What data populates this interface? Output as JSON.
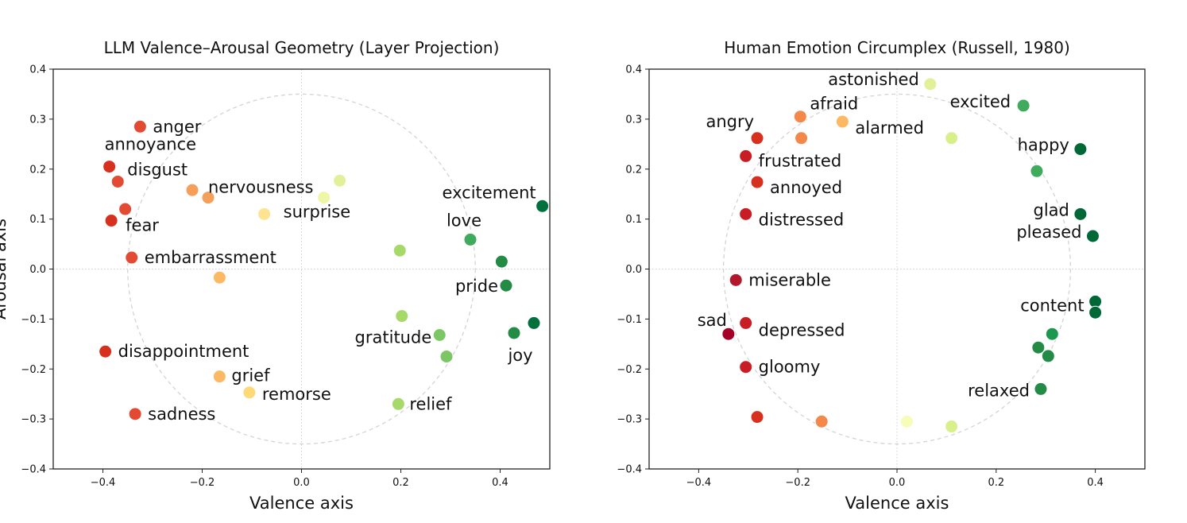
{
  "chart_data": [
    {
      "type": "scatter",
      "title": "LLM Valence–Arousal Geometry (Layer Projection)",
      "xlabel": "Valence axis",
      "ylabel": "Arousal axis",
      "xlim": [
        -0.5,
        0.5
      ],
      "ylim": [
        -0.4,
        0.4
      ],
      "xticks": [
        -0.4,
        -0.2,
        0.0,
        0.2,
        0.4
      ],
      "xtick_labels": [
        "−0.4",
        "−0.2",
        "0.0",
        "0.2",
        "0.4"
      ],
      "yticks": [
        -0.4,
        -0.3,
        -0.2,
        -0.1,
        0.0,
        0.1,
        0.2,
        0.3,
        0.4
      ],
      "ytick_labels": [
        "−0.4",
        "−0.3",
        "−0.2",
        "−0.1",
        "0.0",
        "0.1",
        "0.2",
        "0.3",
        "0.4"
      ],
      "grid": false,
      "reference_circle_radius": 0.35,
      "points": [
        {
          "x": -0.325,
          "y": 0.285,
          "color": "#e34a33",
          "label": "anger"
        },
        {
          "x": -0.387,
          "y": 0.205,
          "color": "#d7301f",
          "label": "annoyance"
        },
        {
          "x": -0.37,
          "y": 0.175,
          "color": "#e34a33",
          "label": "disgust"
        },
        {
          "x": -0.355,
          "y": 0.12,
          "color": "#e34a33",
          "label": ""
        },
        {
          "x": -0.383,
          "y": 0.097,
          "color": "#d7301f",
          "label": "fear"
        },
        {
          "x": -0.342,
          "y": 0.023,
          "color": "#e34a33",
          "label": "embarrassment"
        },
        {
          "x": -0.395,
          "y": -0.165,
          "color": "#d7301f",
          "label": "disappointment"
        },
        {
          "x": -0.335,
          "y": -0.29,
          "color": "#e34a33",
          "label": "sadness"
        },
        {
          "x": -0.22,
          "y": 0.158,
          "color": "#f4a05a",
          "label": ""
        },
        {
          "x": -0.188,
          "y": 0.143,
          "color": "#f4a05a",
          "label": "nervousness"
        },
        {
          "x": -0.165,
          "y": -0.017,
          "color": "#fdb863",
          "label": ""
        },
        {
          "x": -0.165,
          "y": -0.215,
          "color": "#fdb863",
          "label": "grief"
        },
        {
          "x": -0.105,
          "y": -0.247,
          "color": "#fed977",
          "label": "remorse"
        },
        {
          "x": -0.075,
          "y": 0.11,
          "color": "#fee391",
          "label": "surprise"
        },
        {
          "x": 0.045,
          "y": 0.143,
          "color": "#eef7a8",
          "label": ""
        },
        {
          "x": 0.077,
          "y": 0.177,
          "color": "#e2f09a",
          "label": ""
        },
        {
          "x": 0.198,
          "y": 0.037,
          "color": "#a6d96a",
          "label": ""
        },
        {
          "x": 0.202,
          "y": -0.094,
          "color": "#a6d96a",
          "label": ""
        },
        {
          "x": 0.195,
          "y": -0.27,
          "color": "#a6d96a",
          "label": "relief"
        },
        {
          "x": 0.278,
          "y": -0.132,
          "color": "#7bc765",
          "label": "gratitude"
        },
        {
          "x": 0.292,
          "y": -0.175,
          "color": "#7bc765",
          "label": ""
        },
        {
          "x": 0.34,
          "y": 0.059,
          "color": "#41ab5d",
          "label": "love"
        },
        {
          "x": 0.403,
          "y": 0.015,
          "color": "#238b45",
          "label": ""
        },
        {
          "x": 0.412,
          "y": -0.033,
          "color": "#238b45",
          "label": "pride"
        },
        {
          "x": 0.428,
          "y": -0.128,
          "color": "#238b45",
          "label": "joy"
        },
        {
          "x": 0.468,
          "y": -0.108,
          "color": "#00703c",
          "label": ""
        },
        {
          "x": 0.485,
          "y": 0.126,
          "color": "#00703c",
          "label": "excitement"
        }
      ]
    },
    {
      "type": "scatter",
      "title": "Human Emotion Circumplex (Russell, 1980)",
      "xlabel": "Valence axis",
      "ylabel": "",
      "xlim": [
        -0.5,
        0.5
      ],
      "ylim": [
        -0.4,
        0.4
      ],
      "xticks": [
        -0.4,
        -0.2,
        0.0,
        0.2,
        0.4
      ],
      "xtick_labels": [
        "−0.4",
        "−0.2",
        "0.0",
        "0.2",
        "0.4"
      ],
      "yticks": [
        -0.4,
        -0.3,
        -0.2,
        -0.1,
        0.0,
        0.1,
        0.2,
        0.3,
        0.4
      ],
      "ytick_labels": [
        "−0.4",
        "−0.3",
        "−0.2",
        "−0.1",
        "0.0",
        "0.1",
        "0.2",
        "0.3",
        "0.4"
      ],
      "grid": false,
      "reference_circle_radius": 0.35,
      "points": [
        {
          "x": 0.067,
          "y": 0.37,
          "color": "#e2f09a",
          "label": "astonished"
        },
        {
          "x": -0.195,
          "y": 0.305,
          "color": "#f4874a",
          "label": "afraid"
        },
        {
          "x": -0.11,
          "y": 0.295,
          "color": "#fdb863",
          "label": "alarmed"
        },
        {
          "x": 0.255,
          "y": 0.327,
          "color": "#41ab5d",
          "label": "excited"
        },
        {
          "x": -0.282,
          "y": 0.262,
          "color": "#d7301f",
          "label": "angry"
        },
        {
          "x": -0.193,
          "y": 0.262,
          "color": "#f4874a",
          "label": ""
        },
        {
          "x": 0.11,
          "y": 0.262,
          "color": "#d9ef8b",
          "label": ""
        },
        {
          "x": -0.305,
          "y": 0.226,
          "color": "#c81d25",
          "label": "frustrated"
        },
        {
          "x": 0.37,
          "y": 0.24,
          "color": "#006837",
          "label": "happy"
        },
        {
          "x": 0.282,
          "y": 0.196,
          "color": "#41ab5d",
          "label": ""
        },
        {
          "x": -0.282,
          "y": 0.174,
          "color": "#d7301f",
          "label": "annoyed"
        },
        {
          "x": -0.305,
          "y": 0.11,
          "color": "#c81d25",
          "label": "distressed"
        },
        {
          "x": 0.37,
          "y": 0.11,
          "color": "#006837",
          "label": "glad"
        },
        {
          "x": 0.395,
          "y": 0.066,
          "color": "#006837",
          "label": "pleased"
        },
        {
          "x": -0.325,
          "y": -0.022,
          "color": "#b2182b",
          "label": "miserable"
        },
        {
          "x": -0.34,
          "y": -0.13,
          "color": "#a50026",
          "label": "sad"
        },
        {
          "x": -0.305,
          "y": -0.108,
          "color": "#c81d25",
          "label": "depressed"
        },
        {
          "x": 0.4,
          "y": -0.065,
          "color": "#006837",
          "label": "content"
        },
        {
          "x": 0.4,
          "y": -0.087,
          "color": "#006837",
          "label": ""
        },
        {
          "x": 0.313,
          "y": -0.13,
          "color": "#1a9850",
          "label": ""
        },
        {
          "x": 0.285,
          "y": -0.157,
          "color": "#238b45",
          "label": ""
        },
        {
          "x": 0.305,
          "y": -0.174,
          "color": "#238b45",
          "label": ""
        },
        {
          "x": -0.305,
          "y": -0.196,
          "color": "#c81d25",
          "label": "gloomy"
        },
        {
          "x": 0.29,
          "y": -0.24,
          "color": "#238b45",
          "label": "relaxed"
        },
        {
          "x": -0.282,
          "y": -0.296,
          "color": "#d7301f",
          "label": ""
        },
        {
          "x": -0.152,
          "y": -0.305,
          "color": "#f4874a",
          "label": ""
        },
        {
          "x": 0.02,
          "y": -0.305,
          "color": "#f7fcb9",
          "label": ""
        },
        {
          "x": 0.11,
          "y": -0.315,
          "color": "#d9ef8b",
          "label": ""
        }
      ]
    }
  ]
}
